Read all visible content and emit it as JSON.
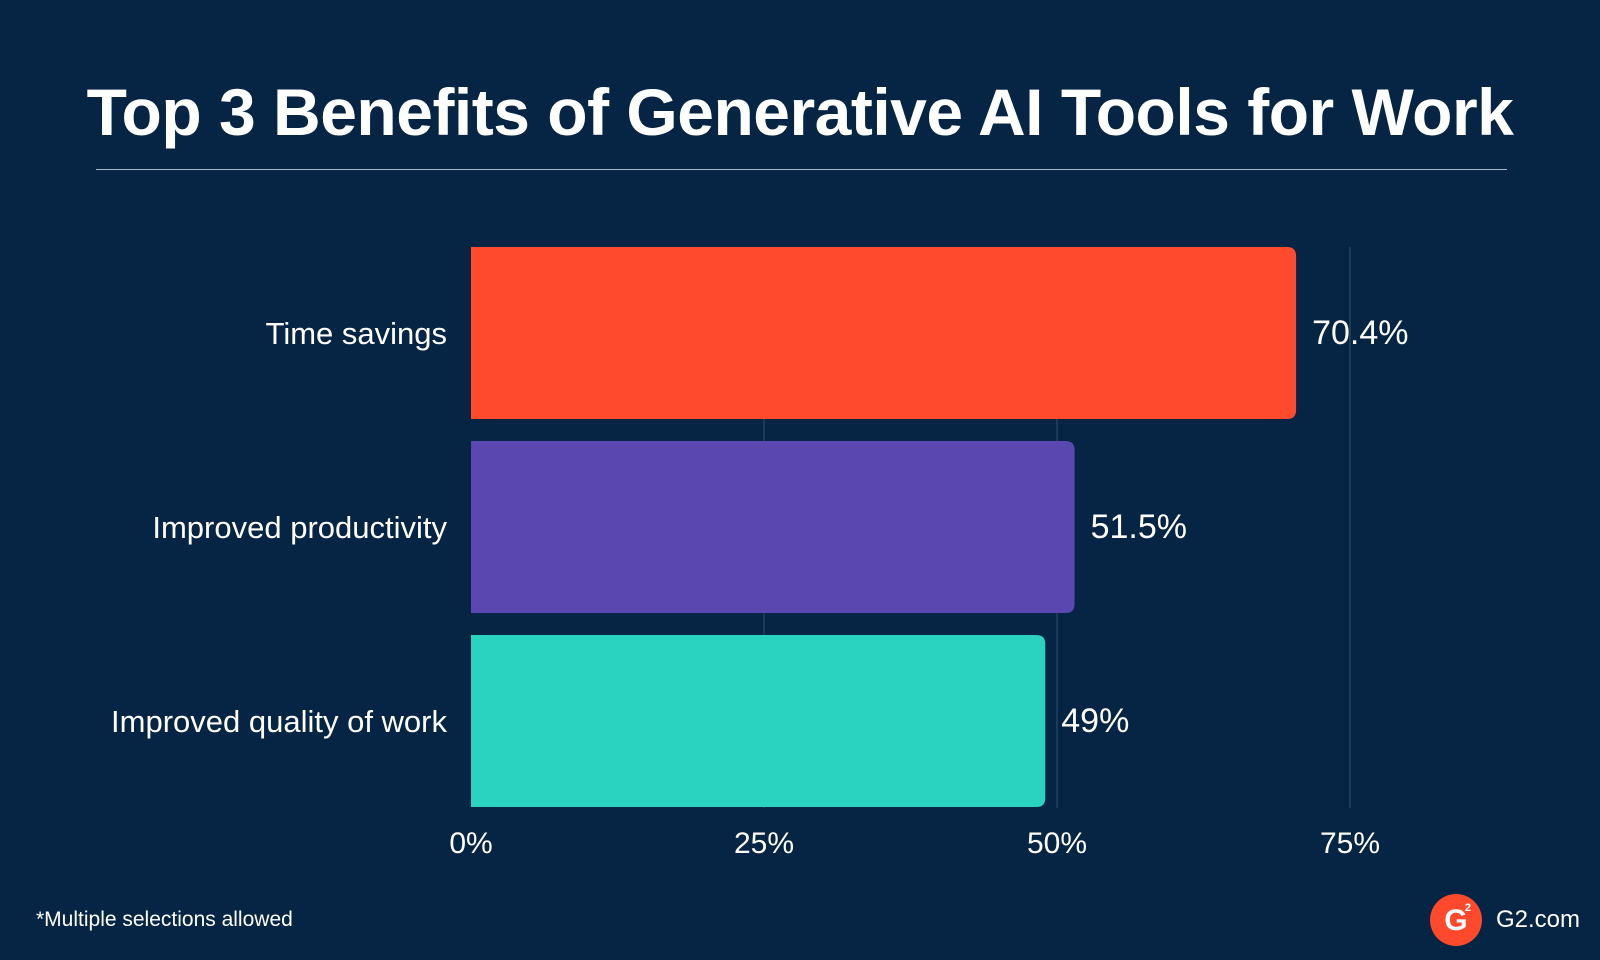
{
  "header": {
    "title": "Top 3 Benefits of Generative AI Tools for Work"
  },
  "chart_data": {
    "type": "bar",
    "orientation": "horizontal",
    "title": "Top 3 Benefits of Generative AI Tools for Work",
    "xlabel": "",
    "ylabel": "",
    "categories": [
      "Time savings",
      "Improved productivity",
      "Improved quality of work"
    ],
    "values": [
      70.4,
      51.5,
      49
    ],
    "value_labels": [
      "70.4%",
      "51.5%",
      "49%"
    ],
    "bar_colors": [
      "#ff4a2e",
      "#5b47b0",
      "#29d3bf"
    ],
    "xlim": [
      0,
      75
    ],
    "xticks": [
      0,
      25,
      50,
      75
    ],
    "xtick_labels": [
      "0%",
      "25%",
      "50%",
      "75%"
    ],
    "grid": "vertical gridlines",
    "legend": "none"
  },
  "footer": {
    "note": "*Multiple selections allowed",
    "brand_text": "G2.com",
    "logo_letter": "G",
    "logo_superscript": "2",
    "logo_color": "#ff492c"
  },
  "colors": {
    "background": "#062544",
    "text": "#ffffff",
    "grid": "#34506e"
  }
}
